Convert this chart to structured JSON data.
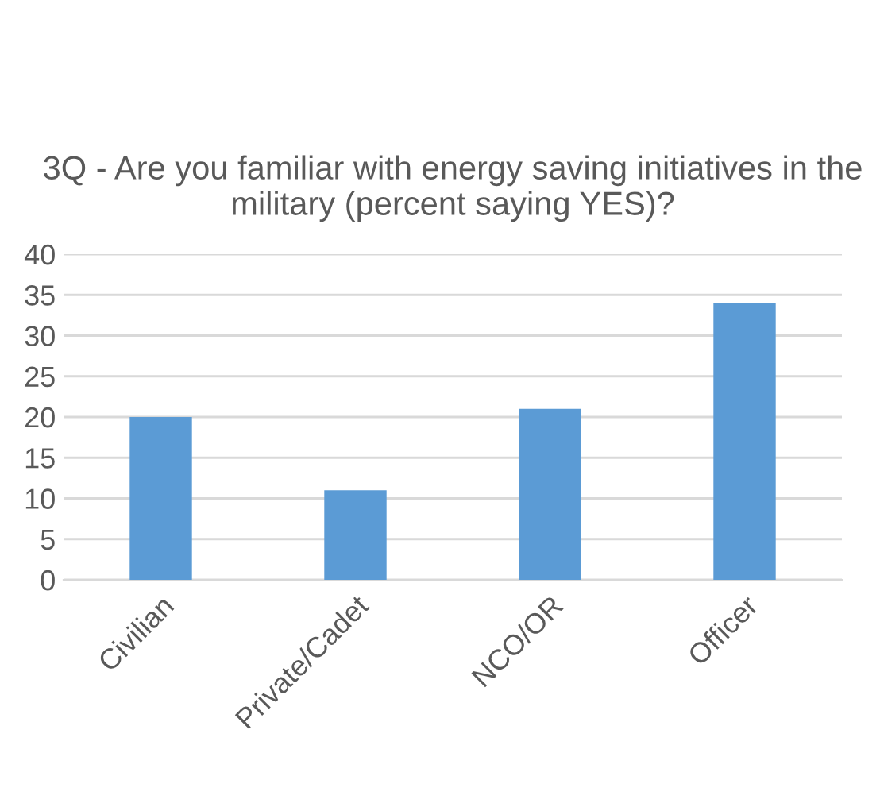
{
  "chart_data": {
    "type": "bar",
    "title": "3Q - Are you familiar with energy saving initiatives in the military (percent saying YES)?",
    "categories": [
      "Civilian",
      "Private/Cadet",
      "NCO/OR",
      "Officer"
    ],
    "values": [
      20,
      11,
      21,
      34
    ],
    "color": "#5b9bd5",
    "ylim": [
      0,
      40
    ],
    "yticks": [
      0,
      5,
      10,
      15,
      20,
      25,
      30,
      35,
      40
    ],
    "grid": "y"
  }
}
